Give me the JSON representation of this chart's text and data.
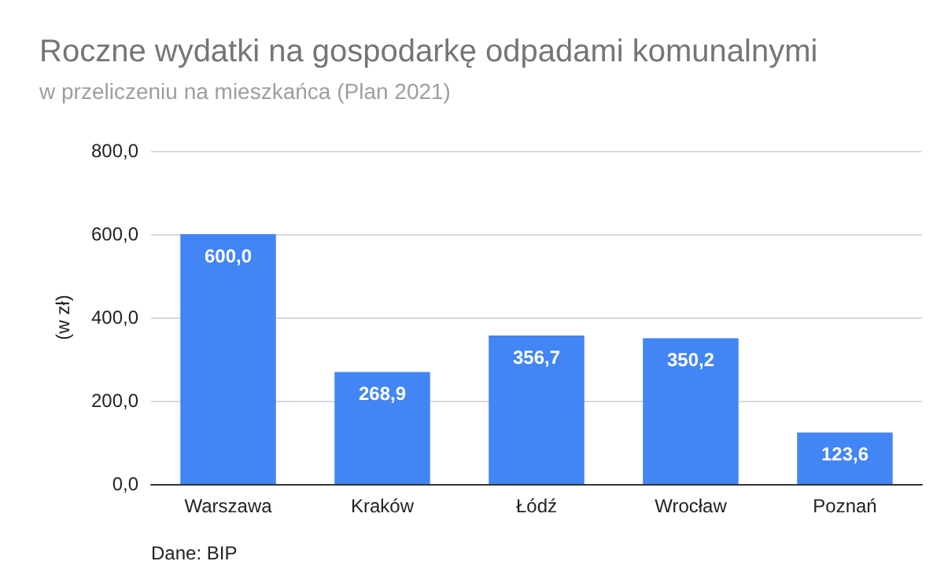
{
  "chart_data": {
    "type": "bar",
    "title": "Roczne wydatki na gospodarkę odpadami komunalnymi",
    "subtitle": "w przeliczeniu na mieszkańca (Plan 2021)",
    "ylabel": "(w zł)",
    "categories": [
      "Warszawa",
      "Kraków",
      "Łódź",
      "Wrocław",
      "Poznań"
    ],
    "values": [
      600.0,
      268.9,
      356.7,
      350.2,
      123.6
    ],
    "value_labels": [
      "600,0",
      "268,9",
      "356,7",
      "350,2",
      "123,6"
    ],
    "color": "#4285f4",
    "ylim": [
      0,
      800
    ],
    "yticks": [
      {
        "value": 0,
        "label": "0,0"
      },
      {
        "value": 200,
        "label": "200,0"
      },
      {
        "value": 400,
        "label": "400,0"
      },
      {
        "value": 600,
        "label": "600,0"
      },
      {
        "value": 800,
        "label": "800,0"
      }
    ],
    "grid": "y",
    "annotations": [
      "Dane: BIP"
    ]
  }
}
